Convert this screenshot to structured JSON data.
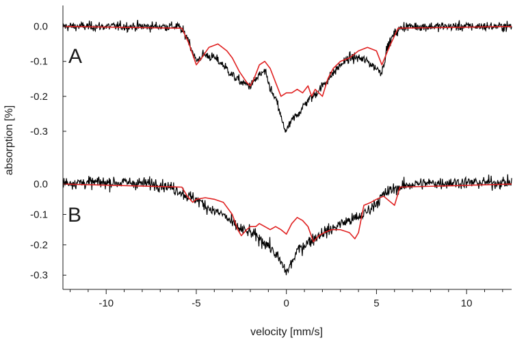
{
  "chart_data": {
    "type": "line",
    "xlabel": "velocity [mm/s]",
    "ylabel": "absorption [%]",
    "xlim": [
      -12.4,
      12.5
    ],
    "x_ticks": [
      -10,
      -5,
      0,
      5,
      10
    ],
    "x_tick_labels": [
      "-10",
      "-5",
      "0",
      "5",
      "10"
    ],
    "grid": false,
    "colors": {
      "data": "#000000",
      "fit": "#e02020"
    },
    "panels": [
      {
        "label": "A",
        "ylim": [
          -0.355,
          0.06
        ],
        "y_ticks": [
          0.0,
          -0.1,
          -0.2,
          -0.3
        ],
        "y_tick_labels": [
          "0.0",
          "-0.1",
          "-0.2",
          "-0.3"
        ],
        "noise_sd": 0.012,
        "series": [
          {
            "role": "measured",
            "x": [
              -12.4,
              -6,
              -5.5,
              -5,
              -4.6,
              -4,
              -3.5,
              -3,
              -2.5,
              -2,
              -1.5,
              -1.2,
              -0.8,
              -0.5,
              -0.2,
              0,
              0.3,
              0.8,
              1.2,
              1.5,
              2,
              2.5,
              3,
              3.5,
              4,
              4.5,
              5,
              5.3,
              5.6,
              6,
              6.5,
              12.5
            ],
            "y": [
              0,
              0,
              -0.03,
              -0.1,
              -0.08,
              -0.09,
              -0.11,
              -0.14,
              -0.16,
              -0.17,
              -0.14,
              -0.13,
              -0.19,
              -0.22,
              -0.28,
              -0.3,
              -0.27,
              -0.24,
              -0.21,
              -0.2,
              -0.17,
              -0.14,
              -0.11,
              -0.09,
              -0.09,
              -0.1,
              -0.12,
              -0.13,
              -0.06,
              -0.02,
              0,
              0
            ]
          },
          {
            "role": "fit",
            "x": [
              -12.4,
              -5.8,
              -5.4,
              -5,
              -4.7,
              -4.3,
              -3.8,
              -3.3,
              -3,
              -2.6,
              -2.2,
              -2,
              -1.8,
              -1.5,
              -1.2,
              -0.9,
              -0.6,
              -0.3,
              0,
              0.3,
              0.6,
              0.9,
              1.2,
              1.4,
              1.6,
              1.8,
              2,
              2.3,
              2.6,
              3,
              3.5,
              4,
              4.5,
              5,
              5.3,
              5.7,
              6.2,
              12.5
            ],
            "y": [
              0,
              -0.005,
              -0.05,
              -0.11,
              -0.09,
              -0.06,
              -0.05,
              -0.07,
              -0.09,
              -0.13,
              -0.16,
              -0.17,
              -0.15,
              -0.11,
              -0.1,
              -0.12,
              -0.16,
              -0.2,
              -0.19,
              -0.19,
              -0.18,
              -0.19,
              -0.17,
              -0.2,
              -0.18,
              -0.19,
              -0.2,
              -0.15,
              -0.12,
              -0.1,
              -0.09,
              -0.07,
              -0.06,
              -0.07,
              -0.11,
              -0.06,
              -0.005,
              0
            ]
          }
        ]
      },
      {
        "label": "B",
        "ylim": [
          -0.34,
          0.07
        ],
        "y_ticks": [
          0.0,
          -0.1,
          -0.2,
          -0.3
        ],
        "y_tick_labels": [
          "0.0",
          "-0.1",
          "-0.2",
          "-0.3"
        ],
        "noise_sd": 0.018,
        "series": [
          {
            "role": "measured",
            "x": [
              -12.4,
              -9,
              -7,
              -6,
              -5.5,
              -5,
              -4.5,
              -4,
              -3.5,
              -3,
              -2.5,
              -2,
              -1.5,
              -1,
              -0.5,
              -0.2,
              0,
              0.3,
              0.6,
              1,
              1.5,
              2,
              2.5,
              3,
              3.5,
              4,
              4.5,
              5,
              5.5,
              6,
              7,
              9,
              12.5
            ],
            "y": [
              0.005,
              0.005,
              0.0,
              -0.02,
              -0.04,
              -0.05,
              -0.07,
              -0.09,
              -0.1,
              -0.13,
              -0.15,
              -0.16,
              -0.18,
              -0.2,
              -0.24,
              -0.27,
              -0.29,
              -0.26,
              -0.22,
              -0.2,
              -0.18,
              -0.16,
              -0.15,
              -0.13,
              -0.12,
              -0.11,
              -0.09,
              -0.06,
              -0.03,
              -0.015,
              0,
              0.005,
              0.005
            ]
          },
          {
            "role": "fit",
            "x": [
              -12.4,
              -5.8,
              -5.5,
              -5.2,
              -5,
              -4.5,
              -4,
              -3.5,
              -3,
              -2.7,
              -2.5,
              -2.2,
              -2,
              -1.7,
              -1.5,
              -1.2,
              -0.9,
              -0.6,
              -0.3,
              0,
              0.3,
              0.6,
              0.9,
              1.2,
              1.5,
              1.8,
              2.1,
              2.5,
              3,
              3.5,
              3.8,
              4,
              4.3,
              4.7,
              5,
              5.4,
              5.6,
              6,
              6.3,
              12.5
            ],
            "y": [
              0,
              -0.01,
              -0.04,
              -0.06,
              -0.05,
              -0.045,
              -0.05,
              -0.06,
              -0.1,
              -0.15,
              -0.17,
              -0.15,
              -0.14,
              -0.14,
              -0.13,
              -0.14,
              -0.15,
              -0.14,
              -0.15,
              -0.165,
              -0.13,
              -0.11,
              -0.12,
              -0.14,
              -0.19,
              -0.17,
              -0.16,
              -0.15,
              -0.15,
              -0.16,
              -0.18,
              -0.16,
              -0.07,
              -0.06,
              -0.05,
              -0.04,
              -0.05,
              -0.07,
              -0.01,
              0
            ]
          }
        ]
      }
    ]
  }
}
